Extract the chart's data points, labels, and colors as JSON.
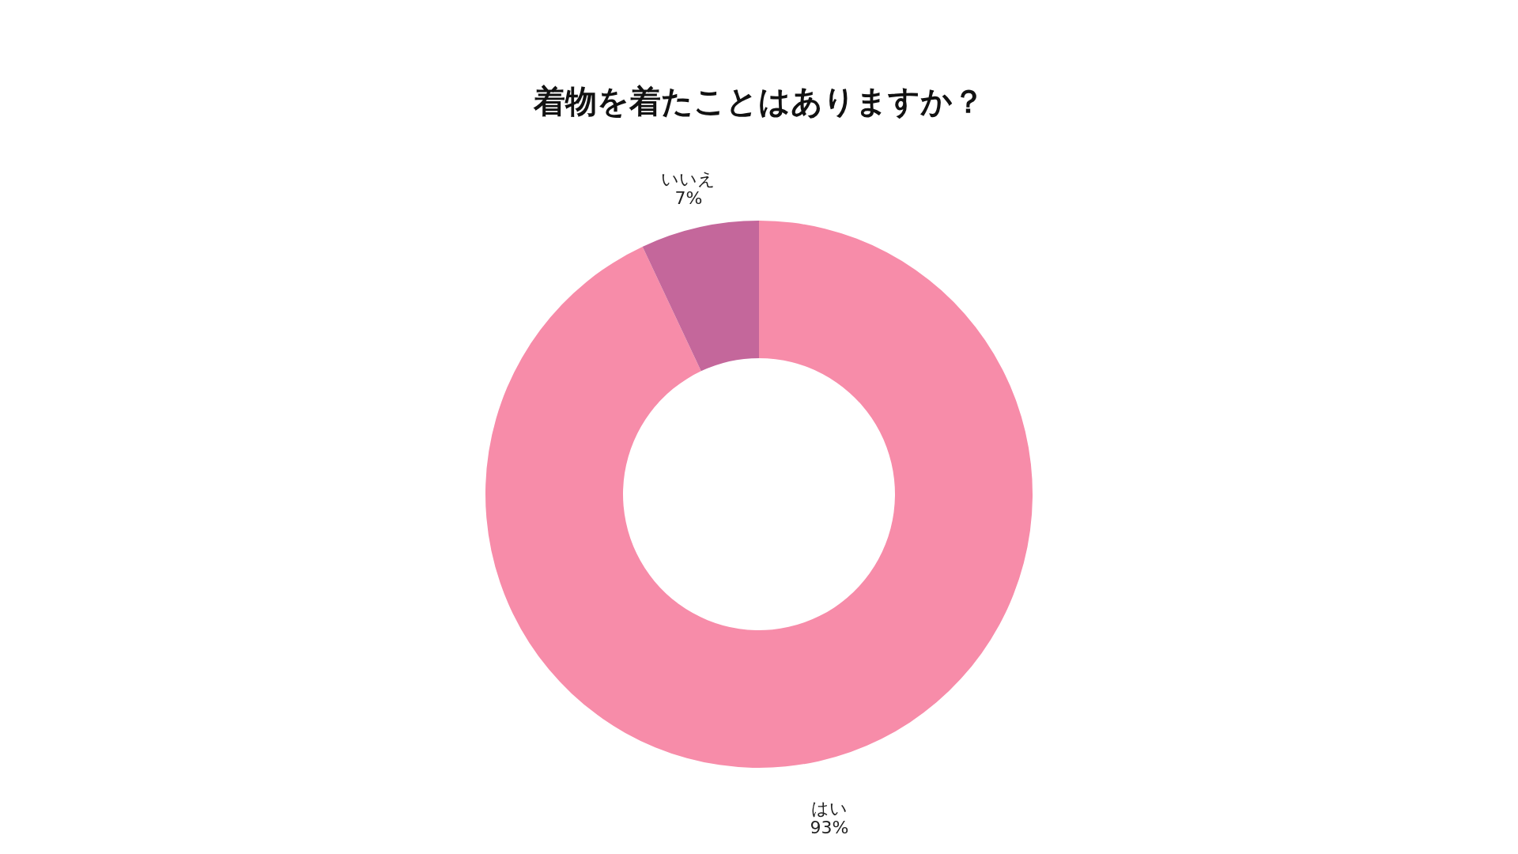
{
  "chart_data": {
    "type": "donut",
    "title": "着物を着たことはありますか？",
    "categories": [
      "はい",
      "いいえ"
    ],
    "values": [
      93,
      7
    ],
    "value_labels": [
      "93%",
      "7%"
    ],
    "colors": [
      "#f78ca9",
      "#c4679b"
    ],
    "legend": false
  }
}
